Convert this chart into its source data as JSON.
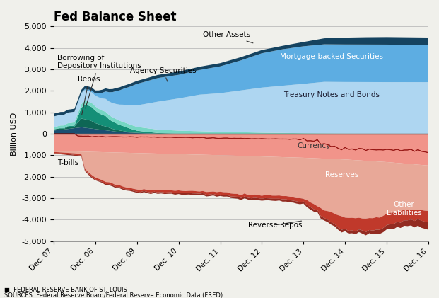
{
  "title": "Fed Balance Sheet",
  "ylabel": "Billion USD",
  "source_text": "SOURCES: Federal Reserve Board/Federal Reserve Economic Data (FRED).",
  "credit_text": "■  FEDERAL RESERVE BANK OF ST. LOUIS",
  "ylim": [
    -5000,
    5000
  ],
  "yticks": [
    -5000,
    -4000,
    -3000,
    -2000,
    -1000,
    0,
    1000,
    2000,
    3000,
    4000,
    5000
  ],
  "x_labels": [
    "Dec. 07",
    "Dec. 08",
    "Dec. 09",
    "Dec. 10",
    "Dec. 11",
    "Dec. 12",
    "Dec. 13",
    "Dec. 14",
    "Dec. 15",
    "Dec. 16"
  ],
  "n_points": 109,
  "colors": {
    "tbills": "#1b4f72",
    "repos": "#0e6655",
    "borrowing": "#148f77",
    "agency": "#76d7c4",
    "treasury": "#aed6f1",
    "mbs": "#5dade2",
    "other_assets": "#154360",
    "currency": "#f1948a",
    "reserves": "#e8a898",
    "reverse_repos": "#c0392b",
    "other_liab": "#922b21"
  },
  "bg_color": "#f0f0eb"
}
